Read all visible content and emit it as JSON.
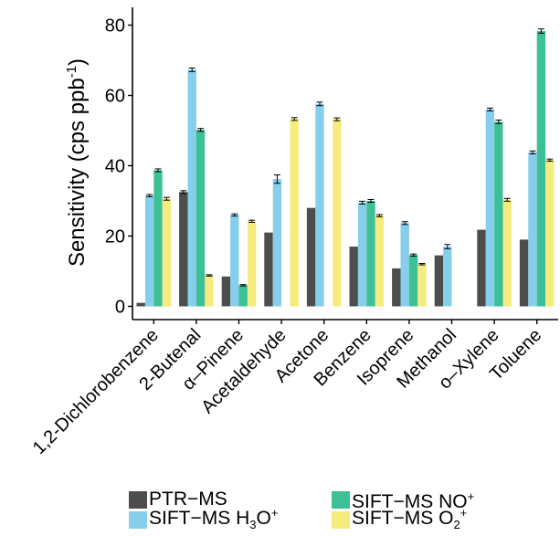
{
  "chart_data": {
    "type": "bar",
    "ylabel": "Sensitivity (cps ppb",
    "ylabel_sup": "-1",
    "ylabel_close": ")",
    "ylim": [
      0,
      82
    ],
    "yticks": [
      0,
      20,
      40,
      60,
      80
    ],
    "grid": false,
    "legend_position": "bottom",
    "categories": [
      "1,2-Dichlorobenzene",
      "2-Butenal",
      "α–Pinene",
      "Acetaldehyde",
      "Acetone",
      "Benzene",
      "Isoprene",
      "Methanol",
      "o–Xylene",
      "Toluene"
    ],
    "series": [
      {
        "name": "PTR−MS",
        "color": "#4d4d4d",
        "values": [
          1.0,
          32.5,
          8.5,
          21.0,
          28.0,
          17.0,
          10.8,
          14.5,
          21.8,
          19.0
        ],
        "errors": [
          0,
          0.4,
          0,
          0,
          0,
          0,
          0,
          0,
          0,
          0
        ]
      },
      {
        "name": "SIFT−MS H3O+",
        "color": "#87ceeb",
        "values": [
          31.5,
          67.3,
          26.0,
          36.2,
          57.6,
          29.5,
          23.7,
          17.0,
          56.0,
          43.8
        ],
        "errors": [
          0.3,
          0.5,
          0.3,
          1.2,
          0.5,
          0.4,
          0.4,
          0.6,
          0.4,
          0.4
        ]
      },
      {
        "name": "SIFT−MS NO+",
        "color": "#3dbf97",
        "values": [
          38.7,
          50.2,
          6.0,
          null,
          null,
          30.0,
          14.6,
          null,
          52.5,
          78.3
        ],
        "errors": [
          0.4,
          0.4,
          0.2,
          0,
          0,
          0.4,
          0.3,
          0,
          0.5,
          0.6
        ]
      },
      {
        "name": "SIFT−MS O2+",
        "color": "#f5eb7e",
        "values": [
          30.6,
          8.8,
          24.2,
          53.3,
          53.2,
          25.8,
          12.0,
          null,
          30.3,
          41.6
        ],
        "errors": [
          0.4,
          0.2,
          0.3,
          0.4,
          0.4,
          0.3,
          0.2,
          0,
          0.4,
          0.3
        ]
      }
    ]
  },
  "legend": {
    "items": [
      {
        "text": "PTR−MS",
        "sub": "",
        "mid": "",
        "sup": ""
      },
      {
        "text": "SIFT−MS NO",
        "sub": "",
        "mid": "",
        "sup": "+"
      },
      {
        "text": "SIFT−MS H",
        "sub": "3",
        "mid": "O",
        "sup": "+"
      },
      {
        "text": "SIFT−MS O",
        "sub": "2",
        "mid": "",
        "sup": "+"
      }
    ]
  }
}
